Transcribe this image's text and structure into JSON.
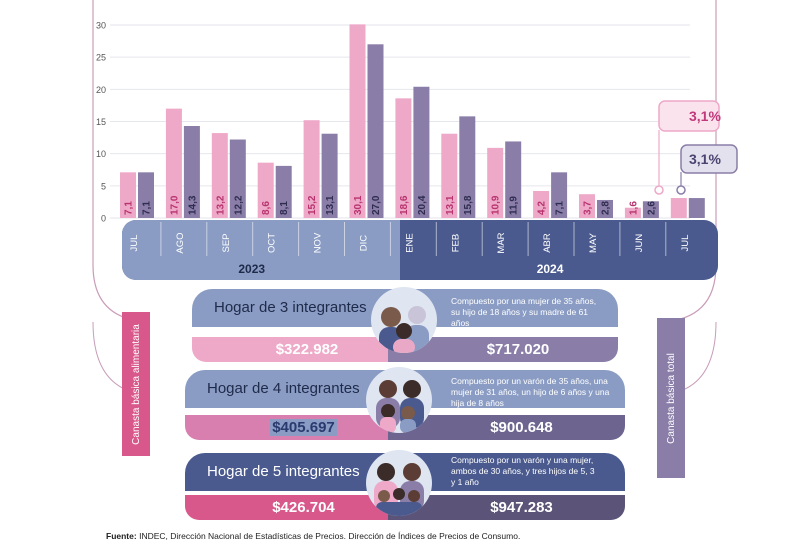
{
  "chart_data": {
    "type": "bar",
    "categories": [
      "JUL",
      "AGO",
      "SEP",
      "OCT",
      "NOV",
      "DIC",
      "ENE",
      "FEB",
      "MAR",
      "ABR",
      "MAY",
      "JUN",
      "JUL"
    ],
    "years": [
      {
        "label": "2023",
        "months": 6
      },
      {
        "label": "2024",
        "months": 7
      }
    ],
    "series": [
      {
        "color": "#eea8c8",
        "values": [
          7.1,
          17.0,
          13.2,
          8.6,
          15.2,
          30.1,
          18.6,
          13.1,
          10.9,
          4.2,
          3.7,
          1.6,
          3.1
        ],
        "labels": [
          "7,1",
          "17,0",
          "13,2",
          "8,6",
          "15,2",
          "30,1",
          "18,6",
          "13,1",
          "10,9",
          "4,2",
          "3,7",
          "1,6",
          ""
        ]
      },
      {
        "color": "#8a7ea8",
        "values": [
          7.1,
          14.3,
          12.2,
          8.1,
          13.1,
          27.0,
          20.4,
          15.8,
          11.9,
          7.1,
          2.8,
          2.6,
          3.1
        ],
        "labels": [
          "7,1",
          "14,3",
          "12,2",
          "8,1",
          "13,1",
          "27,0",
          "20,4",
          "15,8",
          "11,9",
          "7,1",
          "2,8",
          "2,6",
          ""
        ]
      }
    ],
    "yticks": [
      0,
      5,
      10,
      15,
      20,
      25,
      30
    ],
    "ylim": [
      0,
      30
    ],
    "callouts": {
      "pink": "3,1%",
      "purple": "3,1%"
    },
    "grid": true
  },
  "side_labels": {
    "left": "Canasta básica alimentaria",
    "right": "Canasta básica total"
  },
  "households": [
    {
      "title": "Hogar de 3 integrantes",
      "cba": "$322.982",
      "cbt": "$717.020",
      "description": "Compuesto por una mujer de 35 años, su hijo de 18 años y su madre de 61 años"
    },
    {
      "title": "Hogar de 4 integrantes",
      "cba": "$405.697",
      "cbt": "$900.648",
      "description": "Compuesto por un varón de 35 años, una mujer de 31 años, un hijo de 6 años y una hija de 8 años"
    },
    {
      "title": "Hogar de 5 integrantes",
      "cba": "$426.704",
      "cbt": "$947.283",
      "description": "Compuesto por un varón y una mujer, ambos de 30 años, y tres hijos de 5, 3 y 1 año"
    }
  ],
  "source": {
    "label": "Fuente:",
    "text": "INDEC, Dirección Nacional de Estadísticas de Precios. Dirección de Índices de Precios de Consumo."
  },
  "colors": {
    "navy": "#4a5a8e",
    "lightblue": "#8a9cc4",
    "pink": "#eea8c8",
    "purple": "#8a7ea8",
    "darkpink": "#d9588c",
    "frame": "#c99cb8"
  }
}
